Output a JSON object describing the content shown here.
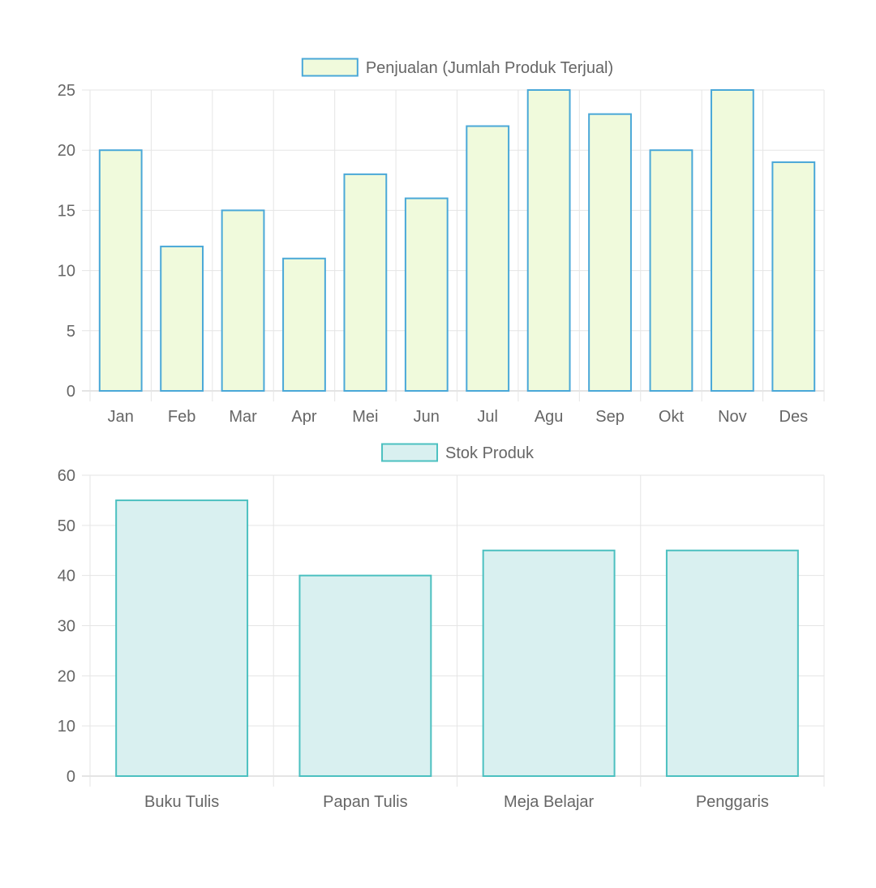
{
  "chart_data": [
    {
      "type": "bar",
      "legend": "Penjualan (Jumlah Produk Terjual)",
      "legend_position": "top",
      "categories": [
        "Jan",
        "Feb",
        "Mar",
        "Apr",
        "Mei",
        "Jun",
        "Jul",
        "Agu",
        "Sep",
        "Okt",
        "Nov",
        "Des"
      ],
      "series": [
        {
          "name": "Penjualan (Jumlah Produk Terjual)",
          "values": [
            20,
            12,
            15,
            11,
            18,
            16,
            22,
            25,
            23,
            20,
            25,
            19
          ]
        }
      ],
      "ylim": [
        0,
        25
      ],
      "yticks": [
        0,
        5,
        10,
        15,
        20,
        25
      ],
      "grid": true,
      "colors": {
        "fill": "#f0fadc",
        "border": "#4aa8d8"
      }
    },
    {
      "type": "bar",
      "legend": "Stok Produk",
      "legend_position": "top",
      "categories": [
        "Buku Tulis",
        "Papan Tulis",
        "Meja Belajar",
        "Penggaris"
      ],
      "series": [
        {
          "name": "Stok Produk",
          "values": [
            55,
            40,
            45,
            45
          ]
        }
      ],
      "ylim": [
        0,
        60
      ],
      "yticks": [
        0,
        10,
        20,
        30,
        40,
        50,
        60
      ],
      "grid": true,
      "colors": {
        "fill": "#d9f0f0",
        "border": "#4cc0c0"
      }
    }
  ]
}
